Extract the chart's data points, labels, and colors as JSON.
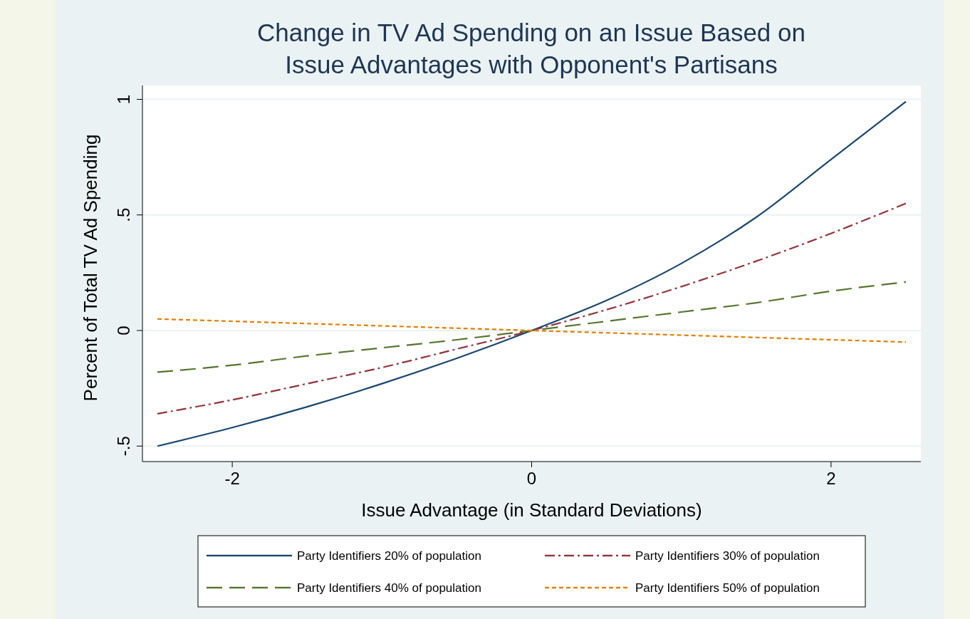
{
  "chart_data": {
    "type": "line",
    "title": "Change in TV Ad Spending on an Issue Based on Issue Advantages with Opponent's Partisans",
    "xlabel": "Issue Advantage (in Standard Deviations)",
    "ylabel": "Percent of Total TV Ad Spending",
    "x": [
      -2.5,
      -2,
      -1.5,
      -1,
      -0.5,
      0,
      0.5,
      1,
      1.5,
      2,
      2.5
    ],
    "series": [
      {
        "name": "Party Identifiers 20% of population",
        "color": "#1a476f",
        "line_style": "solid",
        "values": [
          -0.5,
          -0.42,
          -0.33,
          -0.23,
          -0.12,
          0,
          0.13,
          0.29,
          0.49,
          0.74,
          0.99
        ]
      },
      {
        "name": "Party Identifiers 30% of population",
        "color": "#90353b",
        "line_style": "dashdot",
        "values": [
          -0.36,
          -0.3,
          -0.23,
          -0.16,
          -0.08,
          0,
          0.09,
          0.19,
          0.3,
          0.42,
          0.55
        ]
      },
      {
        "name": "Party Identifiers 40% of population",
        "color": "#55752f",
        "line_style": "dashed",
        "values": [
          -0.18,
          -0.15,
          -0.11,
          -0.075,
          -0.04,
          0,
          0.04,
          0.08,
          0.12,
          0.17,
          0.21
        ]
      },
      {
        "name": "Party Identifiers 50% of population",
        "color": "#e37e00",
        "line_style": "dotted",
        "values": [
          0.05,
          0.04,
          0.03,
          0.02,
          0.01,
          0,
          -0.01,
          -0.02,
          -0.03,
          -0.04,
          -0.05
        ]
      }
    ],
    "xlim": [
      -2.6,
      2.6
    ],
    "xticks": [
      -2,
      0,
      2
    ],
    "ylim": [
      -0.567,
      1.06
    ],
    "yticks": [
      {
        "value": -0.5,
        "label": "-.5"
      },
      0,
      {
        "value": 0.5,
        "label": ".5"
      },
      1
    ],
    "grid": "y",
    "legend": "bottom"
  }
}
